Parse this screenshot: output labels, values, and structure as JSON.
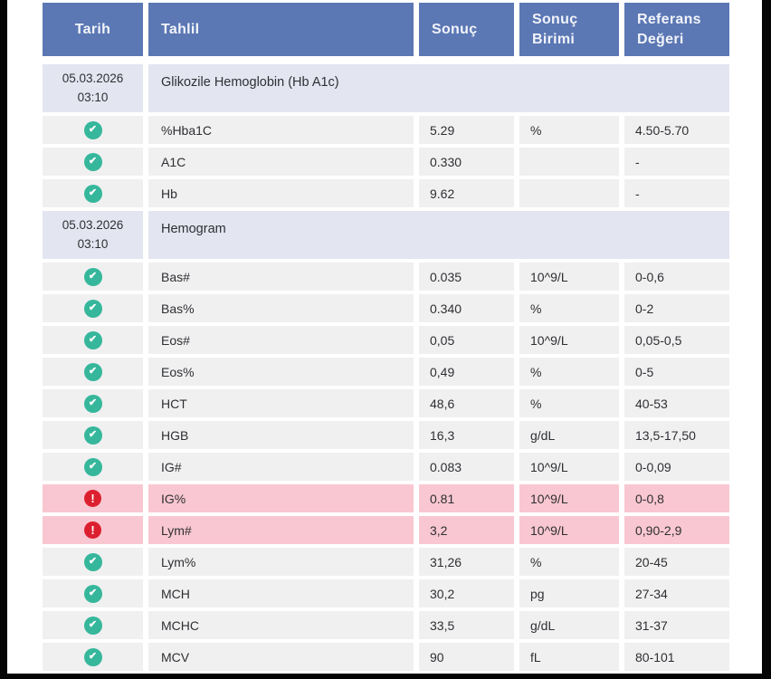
{
  "colors": {
    "header_bg": "#5b77b4",
    "header_text": "#f2f4fa",
    "section_bg": "#e3e6f1",
    "row_bg": "#f0f0f0",
    "alert_row_bg": "#f9c7d1",
    "ok_icon": "#36b79c",
    "alert_icon": "#dc1f2f",
    "text": "#2e2f33",
    "frame": "#050505"
  },
  "icons": {
    "ok_glyph": "✔",
    "alert_glyph": "!"
  },
  "table": {
    "headers": [
      "Tarih",
      "Tahlil",
      "Sonuç",
      "Sonuç Birimi",
      "Referans Değeri"
    ],
    "rows": [
      {
        "type": "section",
        "date": "05.03.2026",
        "time": "03:10",
        "title": "Glikozile Hemoglobin (Hb A1c)"
      },
      {
        "type": "result",
        "status": "ok",
        "name": "%Hba1C",
        "value": "5.29",
        "unit": "%",
        "ref": "4.50-5.70"
      },
      {
        "type": "result",
        "status": "ok",
        "name": "A1C",
        "value": "0.330",
        "unit": "",
        "ref": "-"
      },
      {
        "type": "result",
        "status": "ok",
        "name": "Hb",
        "value": "9.62",
        "unit": "",
        "ref": "-"
      },
      {
        "type": "section",
        "date": "05.03.2026",
        "time": "03:10",
        "title": "Hemogram"
      },
      {
        "type": "result",
        "status": "ok",
        "name": "Bas#",
        "value": "0.035",
        "unit": "10^9/L",
        "ref": "0-0,6"
      },
      {
        "type": "result",
        "status": "ok",
        "name": "Bas%",
        "value": "0.340",
        "unit": "%",
        "ref": "0-2"
      },
      {
        "type": "result",
        "status": "ok",
        "name": "Eos#",
        "value": "0,05",
        "unit": "10^9/L",
        "ref": "0,05-0,5"
      },
      {
        "type": "result",
        "status": "ok",
        "name": "Eos%",
        "value": "0,49",
        "unit": "%",
        "ref": "0-5"
      },
      {
        "type": "result",
        "status": "ok",
        "name": "HCT",
        "value": "48,6",
        "unit": "%",
        "ref": "40-53"
      },
      {
        "type": "result",
        "status": "ok",
        "name": "HGB",
        "value": "16,3",
        "unit": "g/dL",
        "ref": "13,5-17,50"
      },
      {
        "type": "result",
        "status": "ok",
        "name": "IG#",
        "value": "0.083",
        "unit": "10^9/L",
        "ref": "0-0,09"
      },
      {
        "type": "result",
        "status": "alert",
        "name": "IG%",
        "value": "0.81",
        "unit": "10^9/L",
        "ref": "0-0,8"
      },
      {
        "type": "result",
        "status": "alert",
        "name": "Lym#",
        "value": "3,2",
        "unit": "10^9/L",
        "ref": "0,90-2,9"
      },
      {
        "type": "result",
        "status": "ok",
        "name": "Lym%",
        "value": "31,26",
        "unit": "%",
        "ref": "20-45"
      },
      {
        "type": "result",
        "status": "ok",
        "name": "MCH",
        "value": "30,2",
        "unit": "pg",
        "ref": "27-34"
      },
      {
        "type": "result",
        "status": "ok",
        "name": "MCHC",
        "value": "33,5",
        "unit": "g/dL",
        "ref": "31-37"
      },
      {
        "type": "result",
        "status": "ok",
        "name": "MCV",
        "value": "90",
        "unit": "fL",
        "ref": "80-101"
      }
    ]
  }
}
